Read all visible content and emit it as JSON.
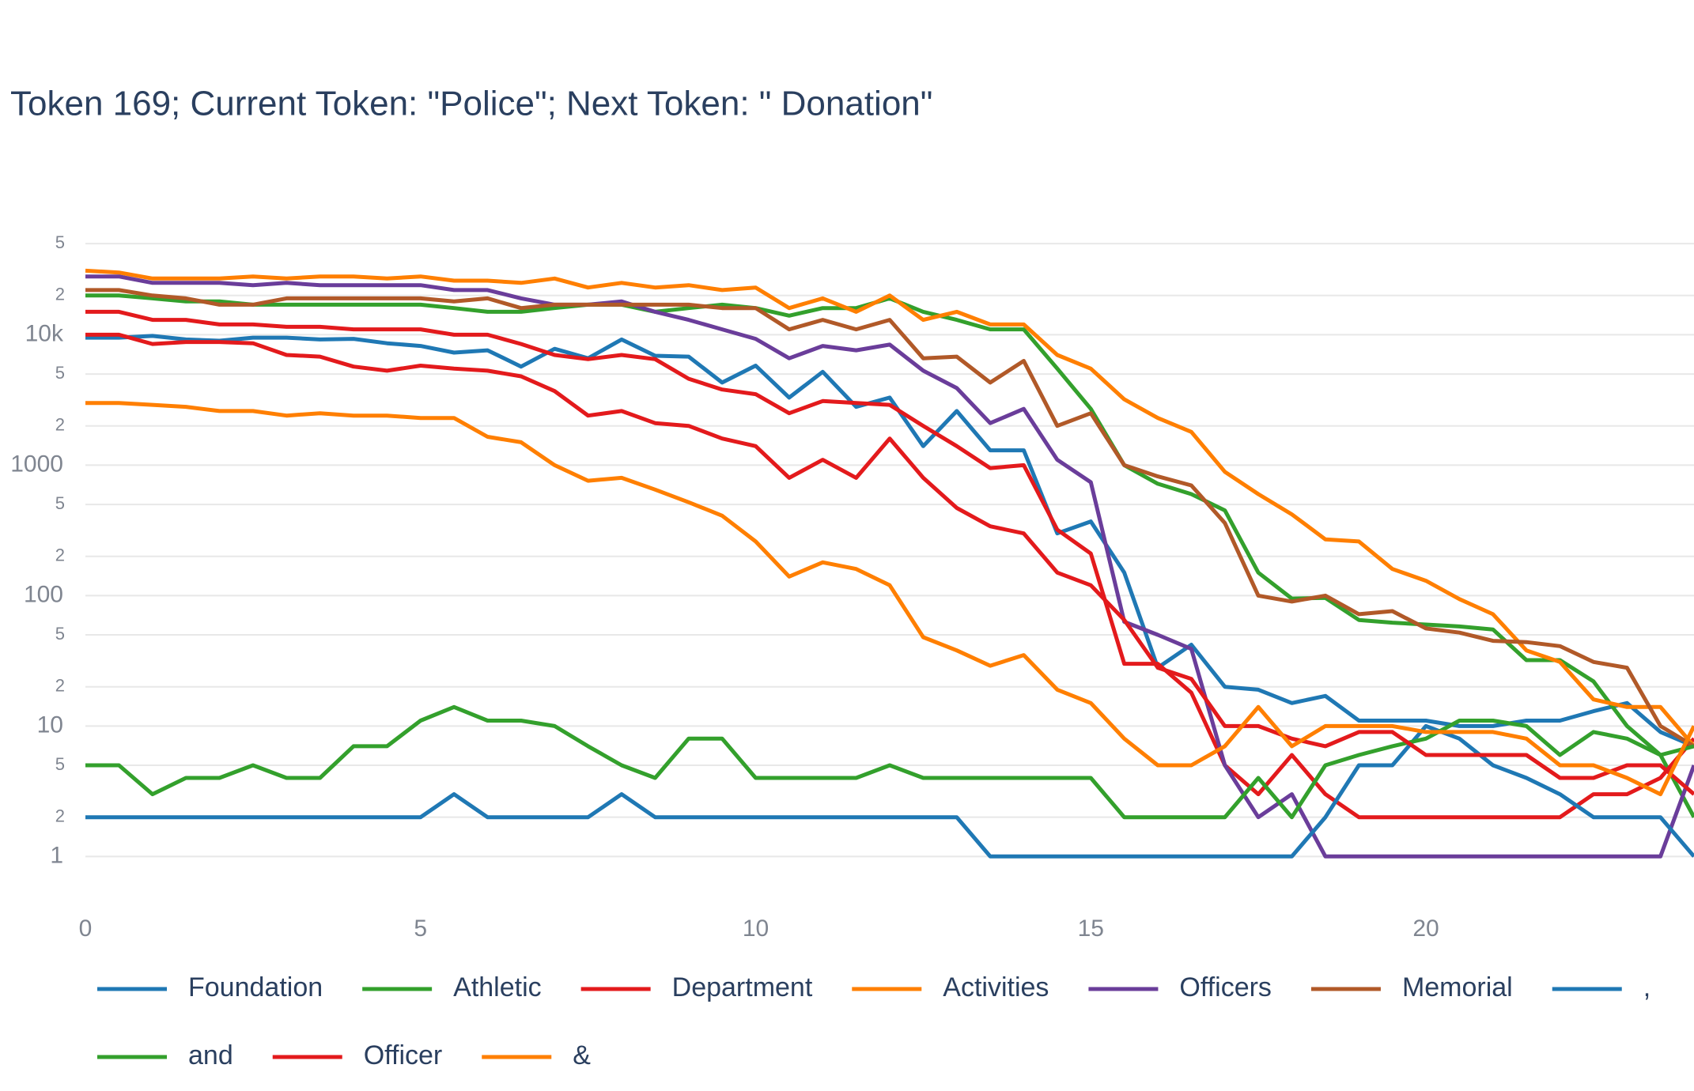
{
  "chart_data": {
    "type": "line",
    "title": "Token 169; Current Token: \"Police\"; Next Token: \" Donation\"",
    "log_y": true,
    "grid": true,
    "xlim": [
      0,
      24
    ],
    "xticks": [
      0,
      5,
      10,
      15,
      20
    ],
    "ylim": [
      0.5,
      70000
    ],
    "yticks": [
      1,
      2,
      5,
      10,
      {
        "value": 20,
        "label": "2"
      },
      {
        "value": 50,
        "label": "5"
      },
      100,
      {
        "value": 200,
        "label": "2"
      },
      {
        "value": 500,
        "label": "5"
      },
      1000,
      {
        "value": 2000,
        "label": "2"
      },
      {
        "value": 5000,
        "label": "5"
      },
      {
        "value": 10000,
        "label": "10k"
      },
      {
        "value": 20000,
        "label": "2"
      },
      {
        "value": 50000,
        "label": "5"
      }
    ],
    "x": [
      0,
      0.5,
      1,
      1.5,
      2,
      2.5,
      3,
      3.5,
      4,
      4.5,
      5,
      5.5,
      6,
      6.5,
      7,
      7.5,
      8,
      8.5,
      9,
      9.5,
      10,
      10.5,
      11,
      11.5,
      12,
      12.5,
      13,
      13.5,
      14,
      14.5,
      15,
      15.5,
      16,
      16.5,
      17,
      17.5,
      18,
      18.5,
      19,
      19.5,
      20,
      20.5,
      21,
      21.5,
      22,
      22.5,
      23,
      23.5,
      24
    ],
    "series": [
      {
        "name": "Foundation",
        "color": "#1f78b4",
        "values": [
          9500,
          9500,
          9800,
          9200,
          9000,
          9500,
          9500,
          9200,
          9300,
          8600,
          8200,
          7300,
          7600,
          5700,
          7800,
          6600,
          9200,
          6900,
          6800,
          4300,
          5800,
          3300,
          5200,
          2800,
          3300,
          1400,
          2600,
          1300,
          1300,
          300,
          370,
          150,
          28,
          42,
          20,
          19,
          15,
          17,
          11,
          11,
          11,
          10,
          10,
          11,
          11,
          13,
          15,
          9,
          7
        ]
      },
      {
        "name": "Athletic",
        "color": "#33a02c",
        "values": [
          20000,
          20000,
          19000,
          18000,
          18000,
          17000,
          17000,
          17000,
          17000,
          17000,
          17000,
          16000,
          15000,
          15000,
          16000,
          17000,
          17000,
          15000,
          16000,
          17000,
          16000,
          14000,
          16000,
          16000,
          19000,
          15000,
          13000,
          11000,
          11000,
          5500,
          2700,
          1000,
          720,
          600,
          450,
          150,
          95,
          96,
          65,
          62,
          60,
          58,
          55,
          32,
          32,
          22,
          10,
          6,
          2
        ]
      },
      {
        "name": "Department",
        "color": "#e31a1c",
        "values": [
          15000,
          15000,
          13000,
          13000,
          12000,
          12000,
          11500,
          11500,
          11000,
          11000,
          11000,
          10000,
          10000,
          8500,
          7000,
          6500,
          7000,
          6500,
          4600,
          3800,
          3500,
          2500,
          3100,
          3000,
          2900,
          2000,
          1400,
          950,
          1000,
          320,
          210,
          30,
          30,
          18,
          5,
          3,
          6,
          3,
          2,
          2,
          2,
          2,
          2,
          2,
          2,
          3,
          3,
          4,
          8
        ]
      },
      {
        "name": "Activities",
        "color": "#ff7f00",
        "values": [
          31000,
          30000,
          27000,
          27000,
          27000,
          28000,
          27000,
          28000,
          28000,
          27000,
          28000,
          26000,
          26000,
          25000,
          27000,
          23000,
          25000,
          23000,
          24000,
          22000,
          23000,
          16000,
          19000,
          15000,
          20000,
          13000,
          15000,
          12000,
          12000,
          7000,
          5500,
          3200,
          2300,
          1800,
          890,
          600,
          420,
          270,
          260,
          160,
          130,
          94,
          72,
          38,
          31,
          16,
          14,
          14,
          7
        ]
      },
      {
        "name": "Officers",
        "color": "#6a3d9a",
        "values": [
          28000,
          28000,
          25000,
          25000,
          25000,
          24000,
          25000,
          24000,
          24000,
          24000,
          24000,
          22000,
          22000,
          19000,
          17000,
          17000,
          18000,
          15000,
          13000,
          11000,
          9300,
          6600,
          8200,
          7600,
          8400,
          5300,
          3900,
          2100,
          2700,
          1100,
          740,
          63,
          50,
          39,
          5,
          2,
          3,
          1,
          1,
          1,
          1,
          1,
          1,
          1,
          1,
          1,
          1,
          1,
          5
        ]
      },
      {
        "name": "Memorial",
        "color": "#b15928",
        "values": [
          22000,
          22000,
          20000,
          19000,
          17000,
          17000,
          19000,
          19000,
          19000,
          19000,
          19000,
          18000,
          19000,
          16000,
          17000,
          17000,
          17000,
          17000,
          17000,
          16000,
          16000,
          11000,
          13000,
          11000,
          13000,
          6600,
          6800,
          4300,
          6300,
          2000,
          2500,
          1000,
          820,
          700,
          360,
          100,
          90,
          100,
          72,
          76,
          56,
          52,
          45,
          44,
          41,
          31,
          28,
          10,
          7
        ]
      },
      {
        "name": ",",
        "color": "#1f78b4",
        "values": [
          2,
          2,
          2,
          2,
          2,
          2,
          2,
          2,
          2,
          2,
          2,
          3,
          2,
          2,
          2,
          2,
          3,
          2,
          2,
          2,
          2,
          2,
          2,
          2,
          2,
          2,
          2,
          1,
          1,
          1,
          1,
          1,
          1,
          1,
          1,
          1,
          1,
          2,
          5,
          5,
          10,
          8,
          5,
          4,
          3,
          2,
          2,
          2,
          1
        ]
      },
      {
        "name": "and",
        "color": "#33a02c",
        "values": [
          5,
          5,
          3,
          4,
          4,
          5,
          4,
          4,
          7,
          7,
          11,
          14,
          11,
          11,
          10,
          7,
          5,
          4,
          8,
          8,
          4,
          4,
          4,
          4,
          5,
          4,
          4,
          4,
          4,
          4,
          4,
          2,
          2,
          2,
          2,
          4,
          2,
          5,
          6,
          7,
          8,
          11,
          11,
          10,
          6,
          9,
          8,
          6,
          7
        ]
      },
      {
        "name": "Officer",
        "color": "#e31a1c",
        "values": [
          10000,
          10000,
          8500,
          8800,
          8800,
          8600,
          7000,
          6800,
          5700,
          5300,
          5800,
          5500,
          5300,
          4800,
          3700,
          2400,
          2600,
          2100,
          2000,
          1600,
          1400,
          800,
          1100,
          800,
          1600,
          800,
          470,
          340,
          300,
          150,
          120,
          65,
          28,
          23,
          10,
          10,
          8,
          7,
          9,
          9,
          6,
          6,
          6,
          6,
          4,
          4,
          5,
          5,
          3
        ]
      },
      {
        "name": "&",
        "color": "#ff7f00",
        "values": [
          3000,
          3000,
          2900,
          2800,
          2600,
          2600,
          2400,
          2500,
          2400,
          2400,
          2300,
          2300,
          1650,
          1500,
          1000,
          760,
          800,
          650,
          520,
          410,
          260,
          140,
          180,
          160,
          120,
          48,
          38,
          29,
          35,
          19,
          15,
          8,
          5,
          5,
          7,
          14,
          7,
          10,
          10,
          10,
          9,
          9,
          9,
          8,
          5,
          5,
          4,
          3,
          10
        ]
      }
    ]
  }
}
